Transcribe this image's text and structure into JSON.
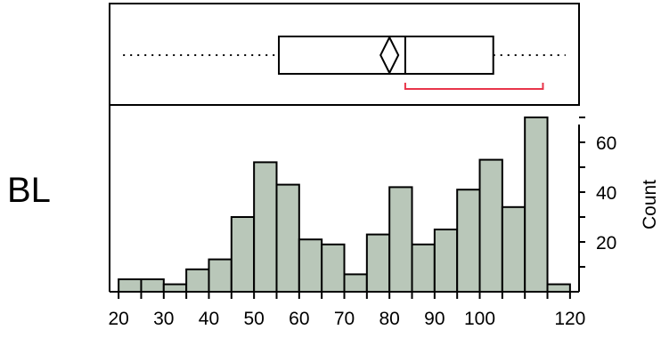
{
  "variable_label": "BL",
  "chart_data": [
    {
      "type": "boxplot",
      "summary": {
        "whisker_low": 21,
        "q1": 55.5,
        "median": 83.5,
        "q3": 103,
        "whisker_high": 119,
        "mean": 80
      },
      "shortest_half": [
        83.5,
        114
      ],
      "xlim": [
        18,
        122
      ]
    },
    {
      "type": "bar",
      "bin_edges": [
        20,
        25,
        30,
        35,
        40,
        45,
        50,
        55,
        60,
        65,
        70,
        75,
        80,
        85,
        90,
        95,
        100,
        105,
        110,
        115,
        120
      ],
      "values": [
        5,
        5,
        3,
        9,
        13,
        30,
        52,
        43,
        21,
        19,
        7,
        23,
        42,
        19,
        25,
        41,
        53,
        34,
        70,
        3
      ],
      "x_ticks": [
        20,
        30,
        40,
        50,
        60,
        70,
        80,
        90,
        100,
        120
      ],
      "y_ticks": [
        20,
        40,
        60
      ],
      "ylabel": "Count",
      "xlim": [
        18,
        122
      ],
      "ylim": [
        0,
        75
      ],
      "bar_color": "#b9c7b9"
    }
  ]
}
